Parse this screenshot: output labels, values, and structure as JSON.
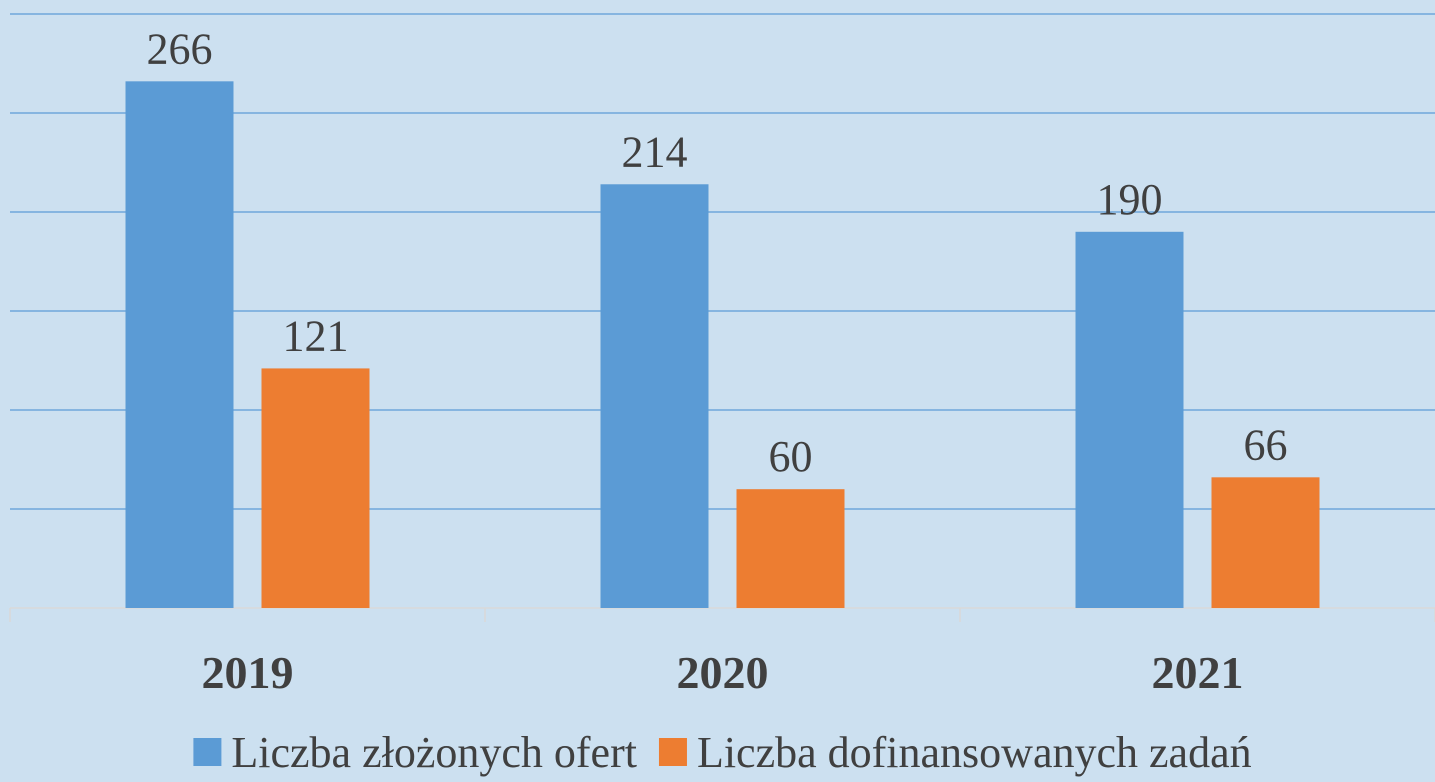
{
  "chart_data": {
    "type": "bar",
    "categories": [
      "2019",
      "2020",
      "2021"
    ],
    "series": [
      {
        "name": "Liczba złożonych ofert",
        "color": "#5b9bd5",
        "values": [
          266,
          214,
          190
        ]
      },
      {
        "name": "Liczba dofinansowanych zadań",
        "color": "#ed7d31",
        "values": [
          121,
          60,
          66
        ]
      }
    ],
    "ylim": [
      0,
      300
    ],
    "yticks": [
      0,
      50,
      100,
      150,
      200,
      250,
      300
    ],
    "grid": true,
    "legend": "bottom"
  }
}
